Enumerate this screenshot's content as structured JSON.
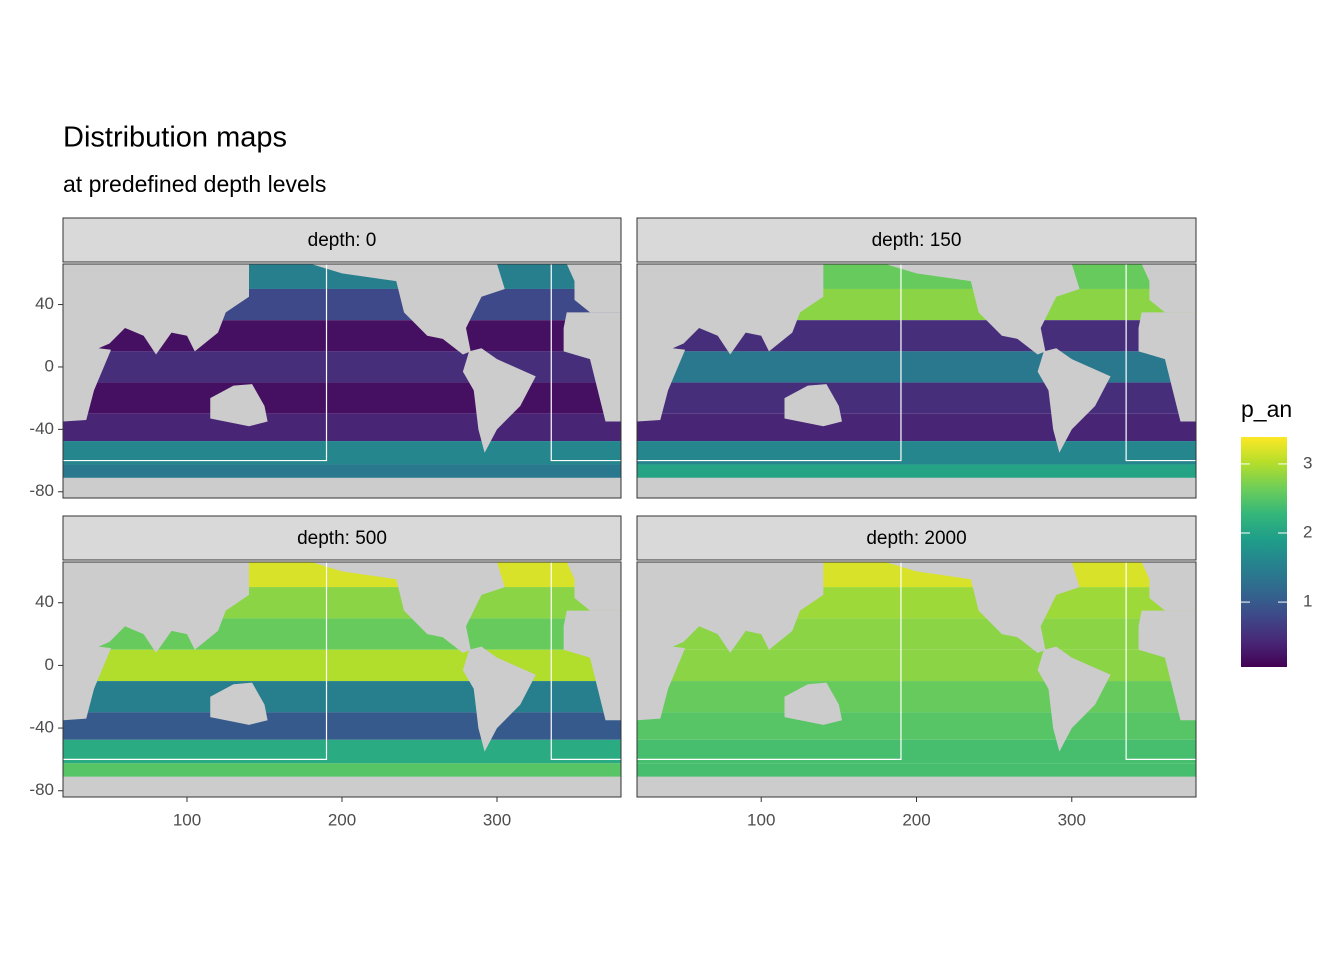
{
  "chart_data": {
    "type": "heatmap",
    "title": "Distribution maps",
    "subtitle": "at predefined depth levels",
    "legend_title": "p_an",
    "xlim": [
      20,
      380
    ],
    "xticks": [
      100,
      200,
      300
    ],
    "ylim": [
      -84,
      66
    ],
    "yticks": [
      40,
      0,
      -40,
      -80
    ],
    "colorlim": [
      0.06,
      3.39
    ],
    "colorticks": [
      3,
      2,
      1
    ],
    "colormap": "viridis",
    "y": [
      60,
      40,
      20,
      0,
      -20,
      -40,
      -55,
      -70
    ],
    "facets": [
      {
        "label": "depth: 0",
        "values": [
          1.5,
          0.8,
          0.2,
          0.5,
          0.2,
          0.4,
          1.6,
          1.4
        ]
      },
      {
        "label": "depth: 150",
        "values": [
          2.6,
          2.8,
          0.5,
          1.4,
          0.5,
          0.4,
          1.6,
          2.0
        ]
      },
      {
        "label": "depth: 500",
        "values": [
          3.2,
          2.8,
          2.6,
          3.0,
          1.5,
          1.0,
          2.1,
          2.5
        ]
      },
      {
        "label": "depth: 2000",
        "values": [
          3.2,
          2.9,
          2.8,
          2.8,
          2.6,
          2.5,
          2.4,
          2.4
        ]
      }
    ]
  }
}
